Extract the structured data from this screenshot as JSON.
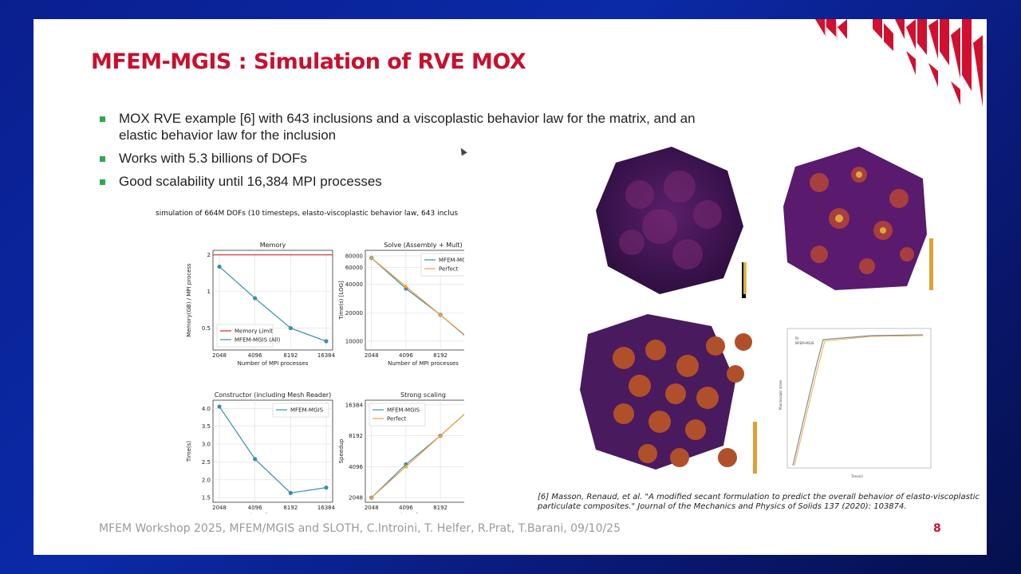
{
  "slide": {
    "title": "MFEM-MGIS : Simulation of RVE MOX",
    "bullets": [
      "MOX RVE example [6] with 643 inclusions and a viscoplastic behavior law for  the matrix, and an elastic behavior law for the inclusion",
      "Works with 5.3 billions of DOFs",
      "Good scalability until 16,384 MPI processes"
    ],
    "reference": "[6] Masson, Renaud, et al. \"A modified secant formulation to predict the overall behavior of elasto-viscoplastic particulate composites.\" Journal of the Mechanics and Physics of Solids 137 (2020): 103874.",
    "footer": "MFEM Workshop 2025, MFEM/MGIS and SLOTH, C.Introini, T. Helfer, R.Prat, T.Barani, 09/10/25",
    "page_number": "8",
    "accent_color": "#c8102e",
    "bullet_color": "#2fa84f"
  },
  "figure_title": "simulation of 664M DOFs (10 timesteps, elasto-viscoplastic behavior law, 643 inclus",
  "chart_data": [
    {
      "type": "line",
      "title": "Memory",
      "xlabel": "Number of MPI processes",
      "ylabel": "Memory(GB) / MPI process",
      "x": [
        2048,
        4096,
        8192,
        16384
      ],
      "x_ticks": [
        "2048",
        "4096",
        "8192",
        "16384"
      ],
      "y_ticks": [
        "2",
        "1",
        "0.5"
      ],
      "ylim": [
        0.36,
        2.0
      ],
      "log_y": true,
      "series": [
        {
          "name": "MFEM-MGIS (All)",
          "values": [
            1.6,
            0.88,
            0.5,
            0.39
          ],
          "color": "#3a8fa8"
        },
        {
          "name": "Memory Limit",
          "values": [
            2.0,
            2.0,
            2.0,
            2.0
          ],
          "color": "#d62728"
        }
      ],
      "legend": "bottom-left"
    },
    {
      "type": "line",
      "title": "Solve (Assembly + Mult)",
      "xlabel": "Number of MPI processes",
      "ylabel": "Time(s) [LOG]",
      "x": [
        2048,
        4096,
        8192,
        16384
      ],
      "x_ticks": [
        "2048",
        "4096",
        "8192",
        "16384"
      ],
      "y_ticks": [
        "80000",
        "60000",
        "40000",
        "20000",
        "10000"
      ],
      "ylim": [
        9000,
        82000
      ],
      "log_y": true,
      "series": [
        {
          "name": "MFEM-MGIS",
          "values": [
            76000,
            36000,
            19000,
            9300
          ],
          "color": "#3a8fa8"
        },
        {
          "name": "Perfect",
          "values": [
            76000,
            38000,
            19000,
            9500
          ],
          "color": "#f0a040"
        }
      ],
      "legend": "top-right"
    },
    {
      "type": "line",
      "title": "Constructor (including Mesh Reader)",
      "xlabel": "Number of MPI processes",
      "ylabel": "Time(s)",
      "x": [
        2048,
        4096,
        8192,
        16384
      ],
      "x_ticks": [
        "2048",
        "4096",
        "8192",
        "16384"
      ],
      "y_ticks": [
        "4.0",
        "3.5",
        "3.0",
        "2.5",
        "2.0",
        "1.5"
      ],
      "ylim": [
        1.5,
        4.1
      ],
      "log_y": false,
      "series": [
        {
          "name": "MFEM-MGIS",
          "values": [
            4.05,
            2.58,
            1.63,
            1.78
          ],
          "color": "#3a8fa8"
        }
      ],
      "legend": "top-right"
    },
    {
      "type": "line",
      "title": "Strong scaling",
      "xlabel": "Number of MPI processes",
      "ylabel": "Speedup",
      "x": [
        2048,
        4096,
        8192,
        16384
      ],
      "x_ticks": [
        "2048",
        "4096",
        "8192",
        "16384"
      ],
      "y_ticks": [
        "16384",
        "8192",
        "4096",
        "2048"
      ],
      "ylim": [
        2048,
        16384
      ],
      "log_y": true,
      "series": [
        {
          "name": "MFEM-MGIS",
          "values": [
            2048,
            4320,
            8192,
            16384
          ],
          "color": "#3a8fa8"
        },
        {
          "name": "Perfect",
          "values": [
            2048,
            4096,
            8192,
            16384
          ],
          "color": "#f0a040"
        }
      ],
      "legend": "top-left"
    }
  ],
  "micro_chart": {
    "legend": [
      "RI",
      "MFEM-MGIS"
    ],
    "xlabel": "Time(s)",
    "ylabel": "Macroscopic strain"
  }
}
